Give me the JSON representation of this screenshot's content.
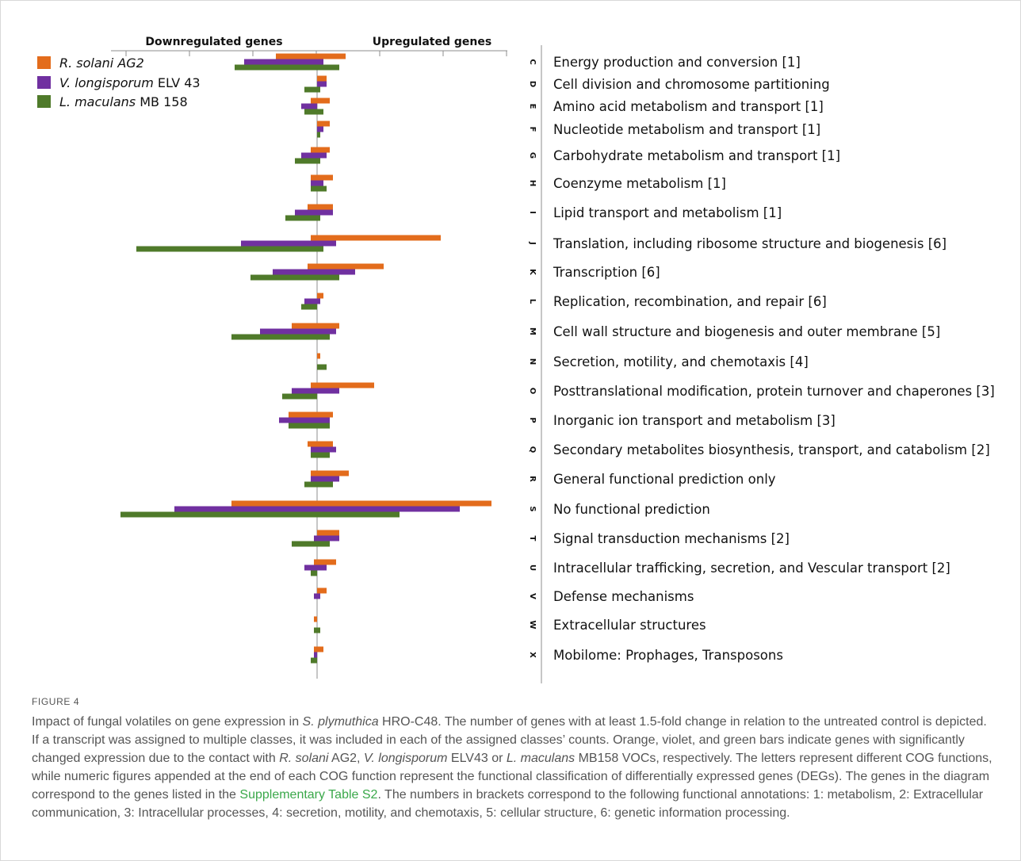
{
  "chart_data": {
    "type": "bar",
    "orientation": "horizontal",
    "headings": {
      "left": "Downregulated genes",
      "right": "Upregulated genes"
    },
    "series": [
      {
        "name": "R. solani AG2",
        "name_parts": [
          {
            "text": "R. solani",
            "italic": true
          },
          {
            "text": " AG2",
            "italic": true
          }
        ],
        "color": "#e36c1c"
      },
      {
        "name": "V. longisporum ELV 43",
        "name_parts": [
          {
            "text": "V. longisporum",
            "italic": true
          },
          {
            "text": " ELV 43",
            "italic": false
          }
        ],
        "color": "#7030a0"
      },
      {
        "name": "L. maculans MB 158",
        "name_parts": [
          {
            "text": "L. maculans",
            "italic": true
          },
          {
            "text": " MB 158",
            "italic": false
          }
        ],
        "color": "#4f7a2a"
      }
    ],
    "categories": [
      {
        "letter": "C",
        "label": "Energy production and conversion [1]",
        "bars": [
          [
            -13,
            9
          ],
          [
            -23,
            2
          ],
          [
            -26,
            7
          ]
        ]
      },
      {
        "letter": "D",
        "label": "Cell division and chromosome partitioning",
        "bars": [
          [
            0,
            3
          ],
          [
            0,
            3
          ],
          [
            -4,
            1
          ]
        ]
      },
      {
        "letter": "E",
        "label": "Amino acid metabolism and transport [1]",
        "bars": [
          [
            -2,
            4
          ],
          [
            -5,
            0
          ],
          [
            -4,
            2
          ]
        ]
      },
      {
        "letter": "F",
        "label": "Nucleotide metabolism and transport [1]",
        "bars": [
          [
            0,
            4
          ],
          [
            0,
            2
          ],
          [
            0,
            1
          ]
        ]
      },
      {
        "letter": "G",
        "label": "Carbohydrate metabolism and transport [1]",
        "bars": [
          [
            -2,
            4
          ],
          [
            -5,
            3
          ],
          [
            -7,
            1
          ]
        ]
      },
      {
        "letter": "H",
        "label": "Coenzyme metabolism [1]",
        "bars": [
          [
            -2,
            5
          ],
          [
            -2,
            2
          ],
          [
            -2,
            3
          ]
        ]
      },
      {
        "letter": "I",
        "label": "Lipid transport and metabolism [1]",
        "bars": [
          [
            -3,
            5
          ],
          [
            -7,
            5
          ],
          [
            -10,
            1
          ]
        ]
      },
      {
        "letter": "J",
        "label": "Translation, including ribosome structure and biogenesis [6]",
        "bars": [
          [
            -2,
            39
          ],
          [
            -24,
            6
          ],
          [
            -57,
            2
          ]
        ]
      },
      {
        "letter": "K",
        "label": "Transcription [6]",
        "bars": [
          [
            -3,
            21
          ],
          [
            -14,
            12
          ],
          [
            -21,
            7
          ]
        ]
      },
      {
        "letter": "L",
        "label": "Replication, recombination, and repair [6]",
        "bars": [
          [
            0,
            2
          ],
          [
            -4,
            1
          ],
          [
            -5,
            0
          ]
        ]
      },
      {
        "letter": "M",
        "label": "Cell wall structure and biogenesis and outer membrane [5]",
        "bars": [
          [
            -8,
            7
          ],
          [
            -18,
            6
          ],
          [
            -27,
            4
          ]
        ]
      },
      {
        "letter": "N",
        "label": "Secretion, motility, and chemotaxis [4]",
        "bars": [
          [
            0,
            1
          ],
          [
            0,
            0
          ],
          [
            0,
            3
          ]
        ]
      },
      {
        "letter": "O",
        "label": "Posttranslational modification, protein turnover and chaperones [3]",
        "bars": [
          [
            -2,
            18
          ],
          [
            -8,
            7
          ],
          [
            -11,
            0
          ]
        ]
      },
      {
        "letter": "P",
        "label": "Inorganic ion transport and metabolism [3]",
        "bars": [
          [
            -9,
            5
          ],
          [
            -12,
            4
          ],
          [
            -9,
            4
          ]
        ]
      },
      {
        "letter": "Q",
        "label": "Secondary metabolites biosynthesis, transport, and catabolism [2]",
        "bars": [
          [
            -3,
            5
          ],
          [
            -2,
            6
          ],
          [
            -2,
            4
          ]
        ]
      },
      {
        "letter": "R",
        "label": "General functional prediction only",
        "bars": [
          [
            -2,
            10
          ],
          [
            -2,
            7
          ],
          [
            -4,
            5
          ]
        ]
      },
      {
        "letter": "S",
        "label": "No functional prediction",
        "bars": [
          [
            -27,
            55
          ],
          [
            -45,
            45
          ],
          [
            -62,
            26
          ]
        ]
      },
      {
        "letter": "T",
        "label": "Signal transduction mechanisms [2]",
        "bars": [
          [
            0,
            7
          ],
          [
            -1,
            7
          ],
          [
            -8,
            4
          ]
        ]
      },
      {
        "letter": "U",
        "label": "Intracellular trafficking, secretion, and Vescular transport [2]",
        "bars": [
          [
            -1,
            6
          ],
          [
            -4,
            3
          ],
          [
            -2,
            0
          ]
        ]
      },
      {
        "letter": "V",
        "label": "Defense mechanisms",
        "bars": [
          [
            0,
            3
          ],
          [
            -1,
            1
          ],
          [
            0,
            0
          ]
        ]
      },
      {
        "letter": "W",
        "label": "Extracellular structures",
        "bars": [
          [
            -1,
            0
          ],
          [
            0,
            0
          ],
          [
            -1,
            1
          ]
        ]
      },
      {
        "letter": "X",
        "label": "Mobilome: Prophages, Transposons",
        "bars": [
          [
            -1,
            2
          ],
          [
            -1,
            0
          ],
          [
            -2,
            0
          ]
        ]
      }
    ],
    "xlim": [
      -66,
      70
    ],
    "tick_interval": 20,
    "legend_position": "top-left",
    "grid": false
  },
  "figure": {
    "label": "FIGURE 4",
    "caption_parts": [
      {
        "text": "Impact of fungal volatiles on gene expression in "
      },
      {
        "text": "S. plymuthica",
        "italic": true
      },
      {
        "text": " HRO-C48. The number of genes with at least 1.5-fold change in relation to the untreated control is depicted. If a transcript was assigned to multiple classes, it was included in each of the assigned classes’ counts. Orange, violet, and green bars indicate genes with significantly changed expression due to the contact with "
      },
      {
        "text": "R. solani",
        "italic": true
      },
      {
        "text": " AG2, "
      },
      {
        "text": "V. longisporum",
        "italic": true
      },
      {
        "text": " ELV43 or "
      },
      {
        "text": "L. maculans",
        "italic": true
      },
      {
        "text": " MB158 VOCs, respectively. The letters represent different COG functions, while numeric figures appended at the end of each COG function represent the functional classification of differentially expressed genes (DEGs). The genes in the diagram correspond to the genes listed in the "
      },
      {
        "text": "Supplementary Table S2",
        "link": true
      },
      {
        "text": ". The numbers in brackets correspond to the following functional annotations: 1: metabolism, 2: Extracellular communication, 3: Intracellular processes, 4: secretion, motility, and chemotaxis, 5: cellular structure, 6: genetic information processing."
      }
    ]
  }
}
